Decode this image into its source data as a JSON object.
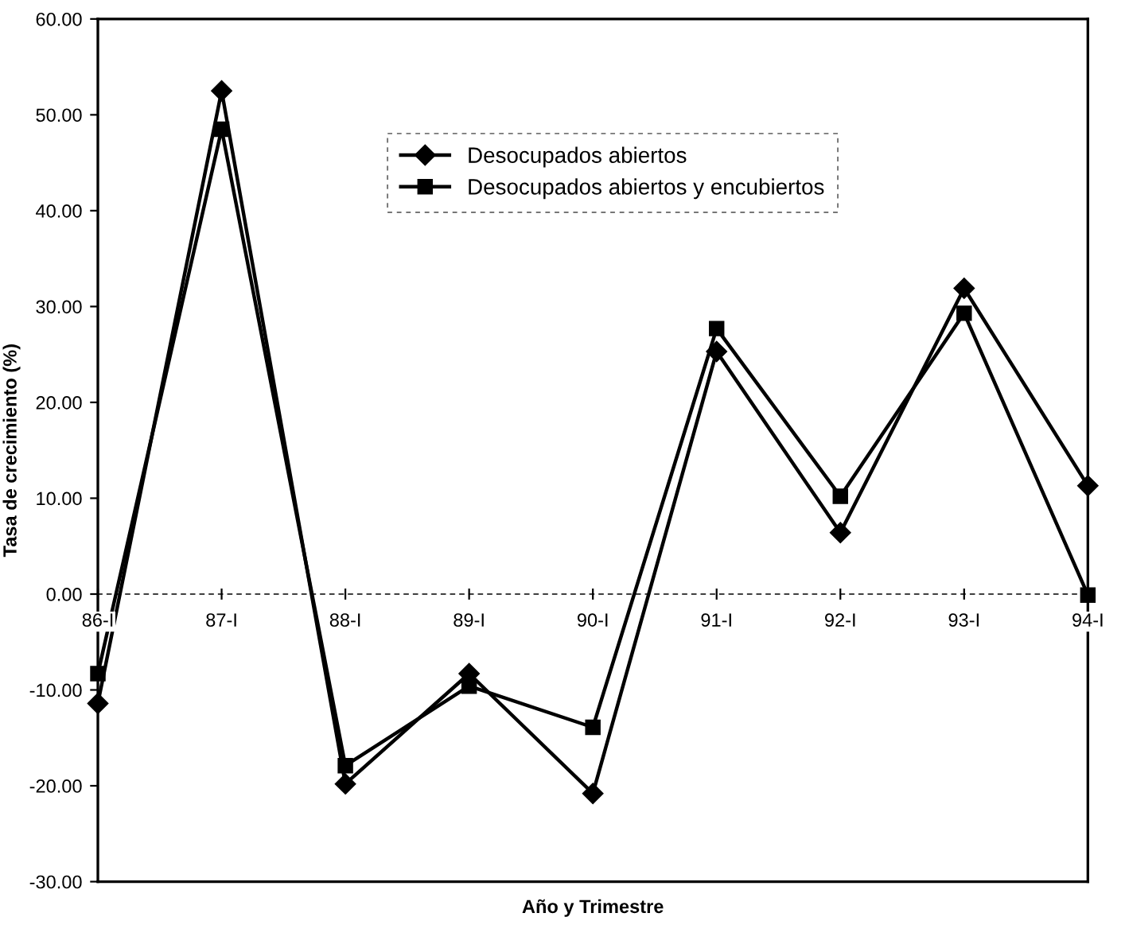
{
  "chart_data": {
    "type": "line",
    "xlabel": "Año y Trimestre",
    "ylabel": "Tasa de crecimiento (%)",
    "categories": [
      "86-I",
      "87-I",
      "88-I",
      "89-I",
      "90-I",
      "91-I",
      "92-I",
      "93-I",
      "94-I"
    ],
    "series": [
      {
        "name": "Desocupados abiertos",
        "color": "#000000",
        "marker": "diamond",
        "values": [
          -11.4,
          52.5,
          -19.8,
          -8.3,
          -20.8,
          25.3,
          6.4,
          31.9,
          11.3
        ]
      },
      {
        "name": "Desocupados abiertos y encubiertos",
        "color": "#000000",
        "marker": "square",
        "values": [
          -8.3,
          48.5,
          -17.9,
          -9.6,
          -13.9,
          27.7,
          10.2,
          29.3,
          -0.1
        ]
      }
    ],
    "ylim": [
      -30,
      60
    ],
    "yticks": [
      {
        "value": 60,
        "label": "60.00"
      },
      {
        "value": 50,
        "label": "50.00"
      },
      {
        "value": 40,
        "label": "40.00"
      },
      {
        "value": 30,
        "label": "30.00"
      },
      {
        "value": 20,
        "label": "20.00"
      },
      {
        "value": 10,
        "label": "10.00"
      },
      {
        "value": 0,
        "label": "0.00"
      },
      {
        "value": -10,
        "label": "-10.00"
      },
      {
        "value": -20,
        "label": "-20.00"
      },
      {
        "value": -30,
        "label": "-30.00"
      }
    ],
    "legend": "top center",
    "line_style": "solid"
  }
}
